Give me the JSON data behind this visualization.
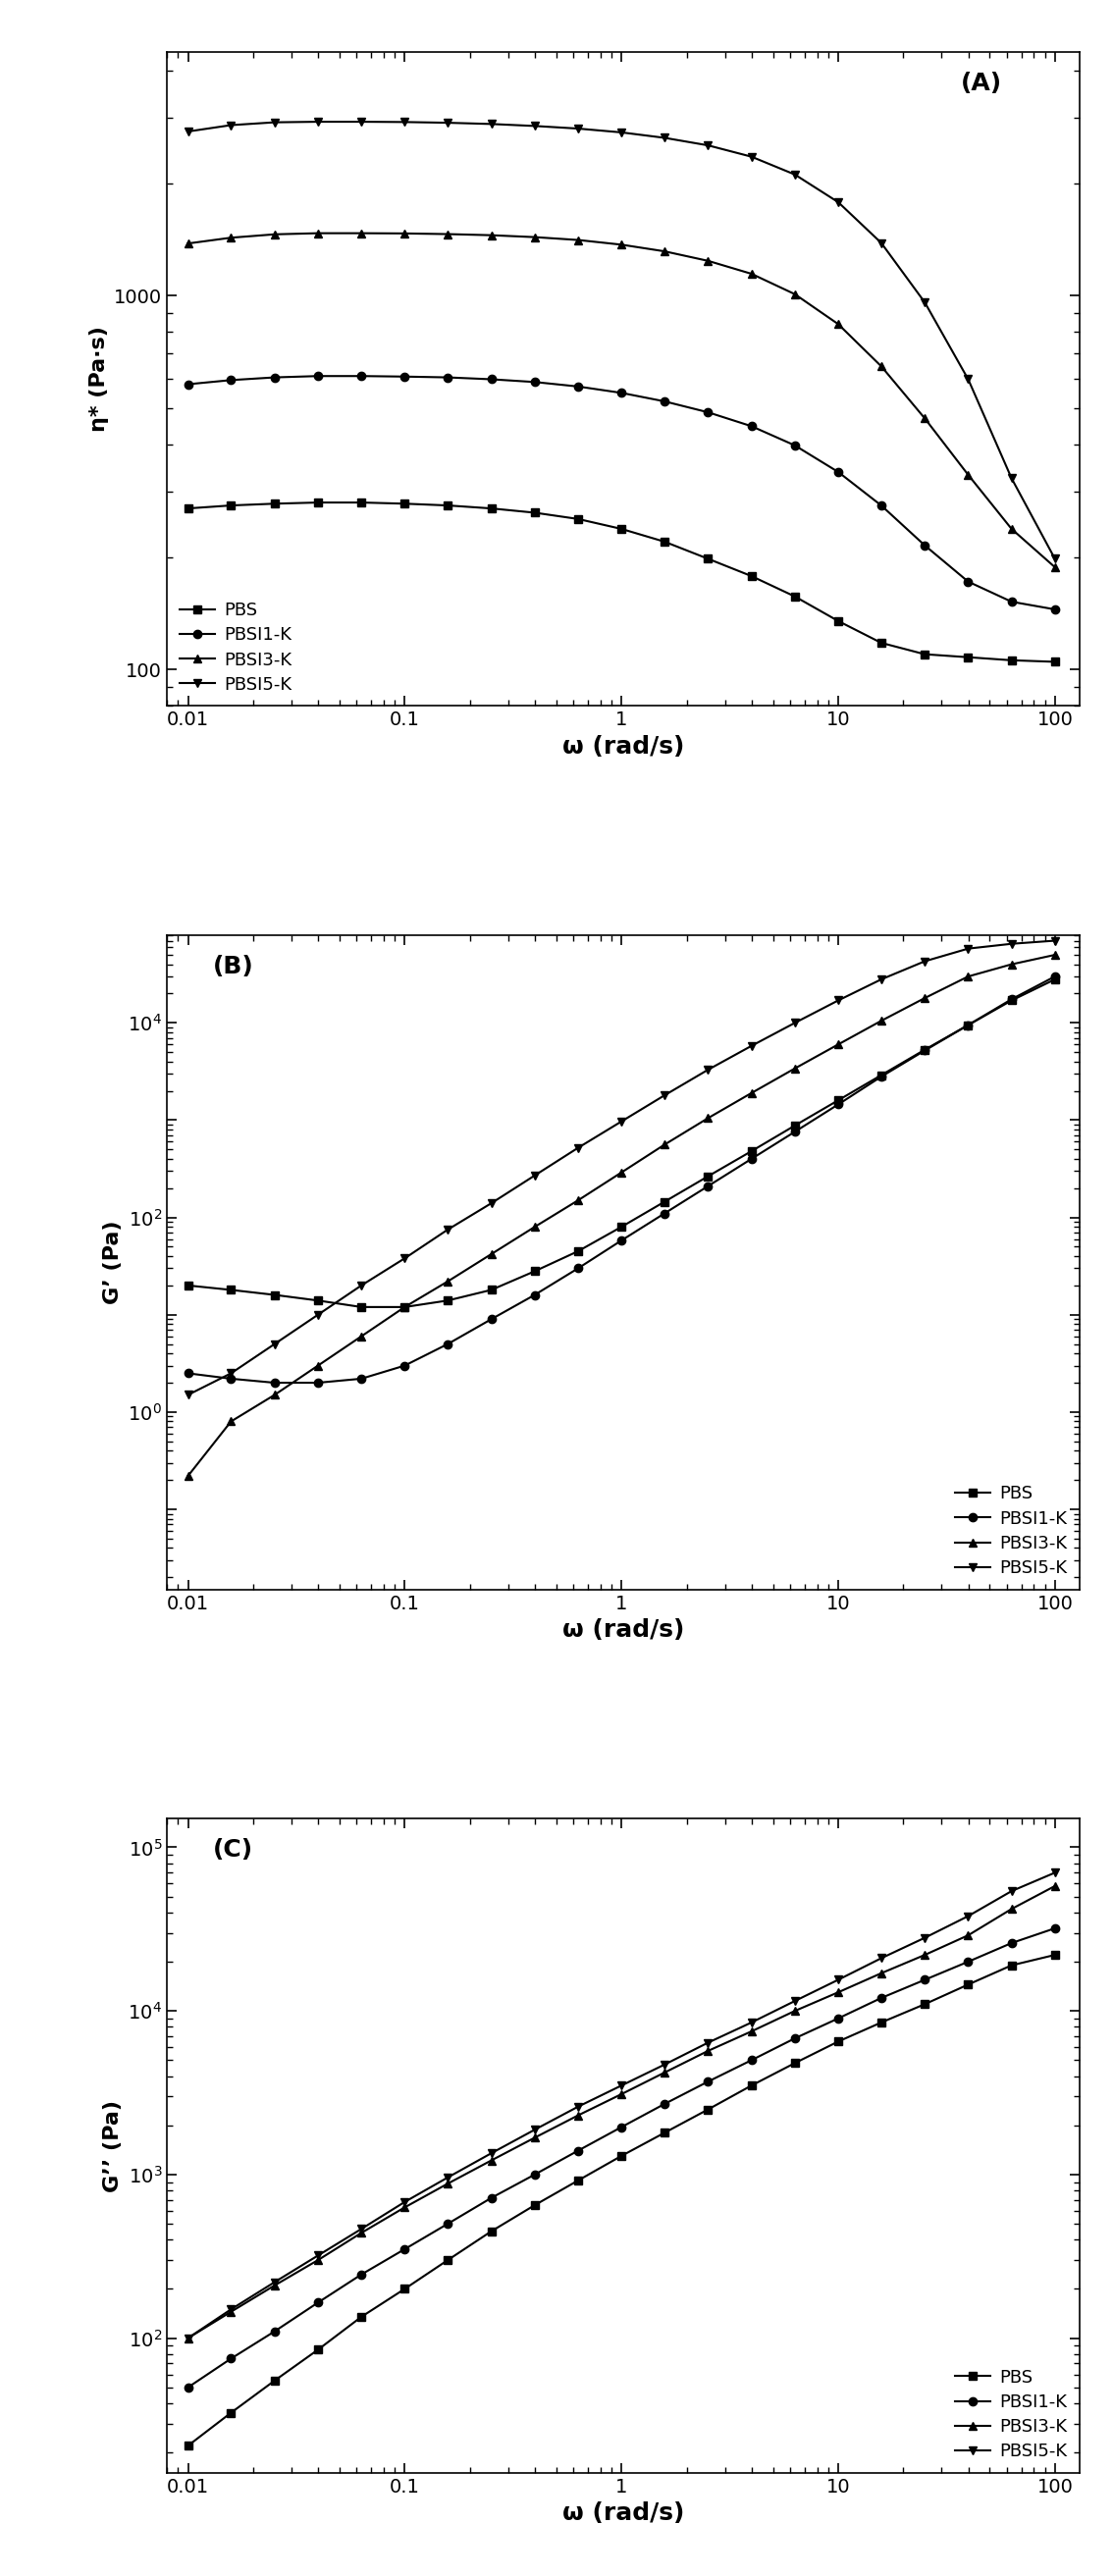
{
  "omega": [
    0.01,
    0.0158,
    0.0251,
    0.0398,
    0.0631,
    0.1,
    0.158,
    0.251,
    0.398,
    0.631,
    1.0,
    1.58,
    2.51,
    3.98,
    6.31,
    10.0,
    15.8,
    25.1,
    39.8,
    63.1,
    100.0
  ],
  "eta_PBS": [
    270,
    275,
    278,
    280,
    280,
    278,
    275,
    270,
    263,
    253,
    238,
    220,
    198,
    178,
    157,
    135,
    118,
    110,
    108,
    106,
    105
  ],
  "eta_PBSI1": [
    580,
    595,
    605,
    610,
    610,
    608,
    605,
    598,
    588,
    572,
    550,
    522,
    488,
    448,
    398,
    338,
    275,
    215,
    172,
    152,
    145
  ],
  "eta_PBSI3": [
    1380,
    1430,
    1460,
    1470,
    1470,
    1468,
    1462,
    1452,
    1435,
    1410,
    1370,
    1315,
    1240,
    1145,
    1010,
    840,
    648,
    470,
    332,
    238,
    188
  ],
  "eta_PBSI5": [
    2750,
    2860,
    2910,
    2920,
    2920,
    2915,
    2902,
    2880,
    2845,
    2800,
    2735,
    2645,
    2525,
    2355,
    2110,
    1780,
    1385,
    960,
    598,
    325,
    198
  ],
  "Gp_PBS": [
    20,
    18,
    16,
    14,
    12,
    12,
    14,
    18,
    28,
    45,
    80,
    145,
    265,
    480,
    880,
    1600,
    2900,
    5300,
    9500,
    17000,
    28000
  ],
  "Gp_PBSI1": [
    2.5,
    2.2,
    2.0,
    2.0,
    2.2,
    3.0,
    5.0,
    9.0,
    16,
    30,
    58,
    110,
    210,
    400,
    760,
    1450,
    2800,
    5200,
    9500,
    17500,
    30000
  ],
  "Gp_PBSI3": [
    0.22,
    0.8,
    1.5,
    3.0,
    6.0,
    12,
    22,
    42,
    80,
    150,
    290,
    560,
    1050,
    1900,
    3400,
    6000,
    10500,
    18000,
    30000,
    40000,
    50000
  ],
  "Gp_PBSI5": [
    1.5,
    2.5,
    5.0,
    10,
    20,
    38,
    75,
    140,
    270,
    520,
    970,
    1800,
    3300,
    5800,
    10000,
    17000,
    28000,
    43000,
    58000,
    65000,
    70000
  ],
  "Gdp_PBS": [
    22,
    35,
    55,
    85,
    135,
    200,
    300,
    450,
    650,
    920,
    1300,
    1800,
    2500,
    3500,
    4800,
    6500,
    8500,
    11000,
    14500,
    19000,
    22000
  ],
  "Gdp_PBSI1": [
    50,
    75,
    110,
    165,
    245,
    350,
    500,
    720,
    1000,
    1400,
    1950,
    2700,
    3700,
    5000,
    6800,
    9000,
    12000,
    15500,
    20000,
    26000,
    32000
  ],
  "Gdp_PBSI3": [
    100,
    145,
    210,
    300,
    440,
    630,
    880,
    1220,
    1680,
    2300,
    3100,
    4200,
    5700,
    7500,
    10000,
    13000,
    17000,
    22000,
    29000,
    42000,
    58000
  ],
  "Gdp_PBSI5": [
    100,
    150,
    220,
    320,
    465,
    680,
    960,
    1350,
    1880,
    2600,
    3500,
    4700,
    6400,
    8500,
    11500,
    15500,
    21000,
    28000,
    38000,
    54000,
    70000
  ],
  "labels": [
    "PBS",
    "PBSI1-K",
    "PBSI3-K",
    "PBSI5-K"
  ],
  "markers": [
    "s",
    "o",
    "^",
    "v"
  ],
  "linewidth": 1.5,
  "markersize": 6,
  "panel_labels": [
    "(A)",
    "(B)",
    "(C)"
  ],
  "ylabels_A": "η* (Pa·s)",
  "ylabels_B": "G’ (Pa)",
  "ylabels_C": "G’’ (Pa)",
  "xlabel": "ω (rad/s)",
  "xlim": [
    0.008,
    130
  ],
  "ylim_A": [
    80,
    4500
  ],
  "ylim_B": [
    0.015,
    80000
  ],
  "ylim_C": [
    15,
    150000
  ]
}
